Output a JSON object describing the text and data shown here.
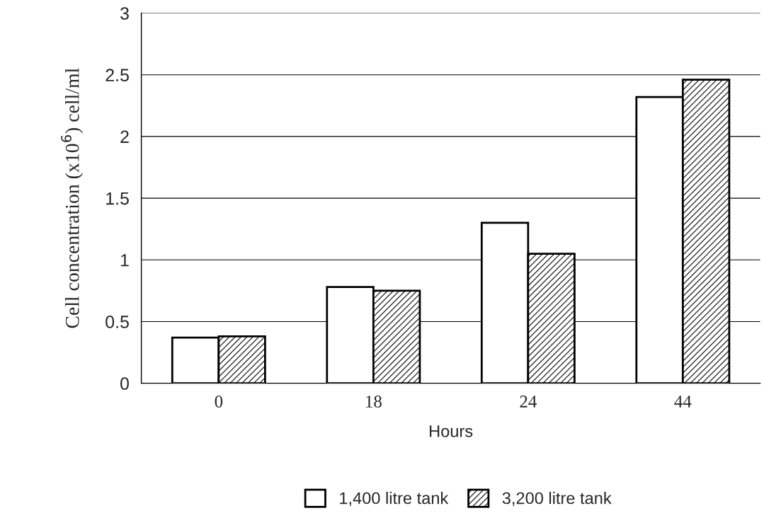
{
  "chart_data": {
    "type": "bar",
    "xlabel": "Hours",
    "ylabel": "Cell concentration (x10$^{6}$) cell/ml",
    "categories": [
      "0",
      "18",
      "24",
      "44"
    ],
    "series": [
      {
        "name": "1,400 litre tank",
        "color": "#ffffff",
        "values": [
          0.37,
          0.78,
          1.3,
          2.32
        ]
      },
      {
        "name": "3,200 litre tank",
        "color": "#000000",
        "values": [
          0.38,
          0.75,
          1.05,
          2.46
        ]
      }
    ],
    "ylim": [
      0,
      3
    ],
    "yticks": [
      0,
      0.5,
      1,
      1.5,
      2,
      2.5,
      3
    ],
    "grid": "y",
    "legend": "bottom"
  }
}
